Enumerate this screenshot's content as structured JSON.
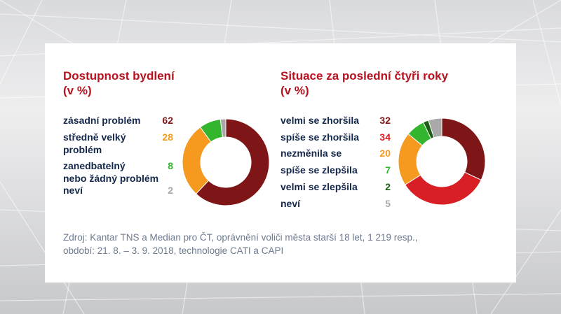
{
  "chart_data": [
    {
      "type": "pie",
      "title": "Dostupnost bydlení",
      "subtitle": "(v %)",
      "categories": [
        "zásadní problém",
        "středně velký\nproblém",
        "zanedbatelný\nnebo žádný problém",
        "neví"
      ],
      "values": [
        62,
        28,
        8,
        2
      ],
      "colors": [
        "#7e1516",
        "#f59a1e",
        "#33b52e",
        "#a9a9a9"
      ]
    },
    {
      "type": "pie",
      "title": "Situace za poslední čtyři roky",
      "subtitle": "(v %)",
      "categories": [
        "velmi se zhoršila",
        "spíše se zhoršila",
        "nezměnila se",
        "spíše se zlepšila",
        "velmi se zlepšila",
        "neví"
      ],
      "values": [
        32,
        34,
        20,
        7,
        2,
        5
      ],
      "colors": [
        "#7e1516",
        "#d81f26",
        "#f59a1e",
        "#33b52e",
        "#1e5e17",
        "#a9a9a9"
      ]
    }
  ],
  "source": {
    "line1": "Zdroj: Kantar TNS a Median pro ČT, oprávnění voliči města starší 18 let, 1 219 resp.,",
    "line2": "období: 21. 8. – 3. 9. 2018, technologie CATI a CAPI"
  },
  "colors": {
    "title": "#b8121f",
    "label": "#14284b",
    "source": "#6d7a8f"
  }
}
